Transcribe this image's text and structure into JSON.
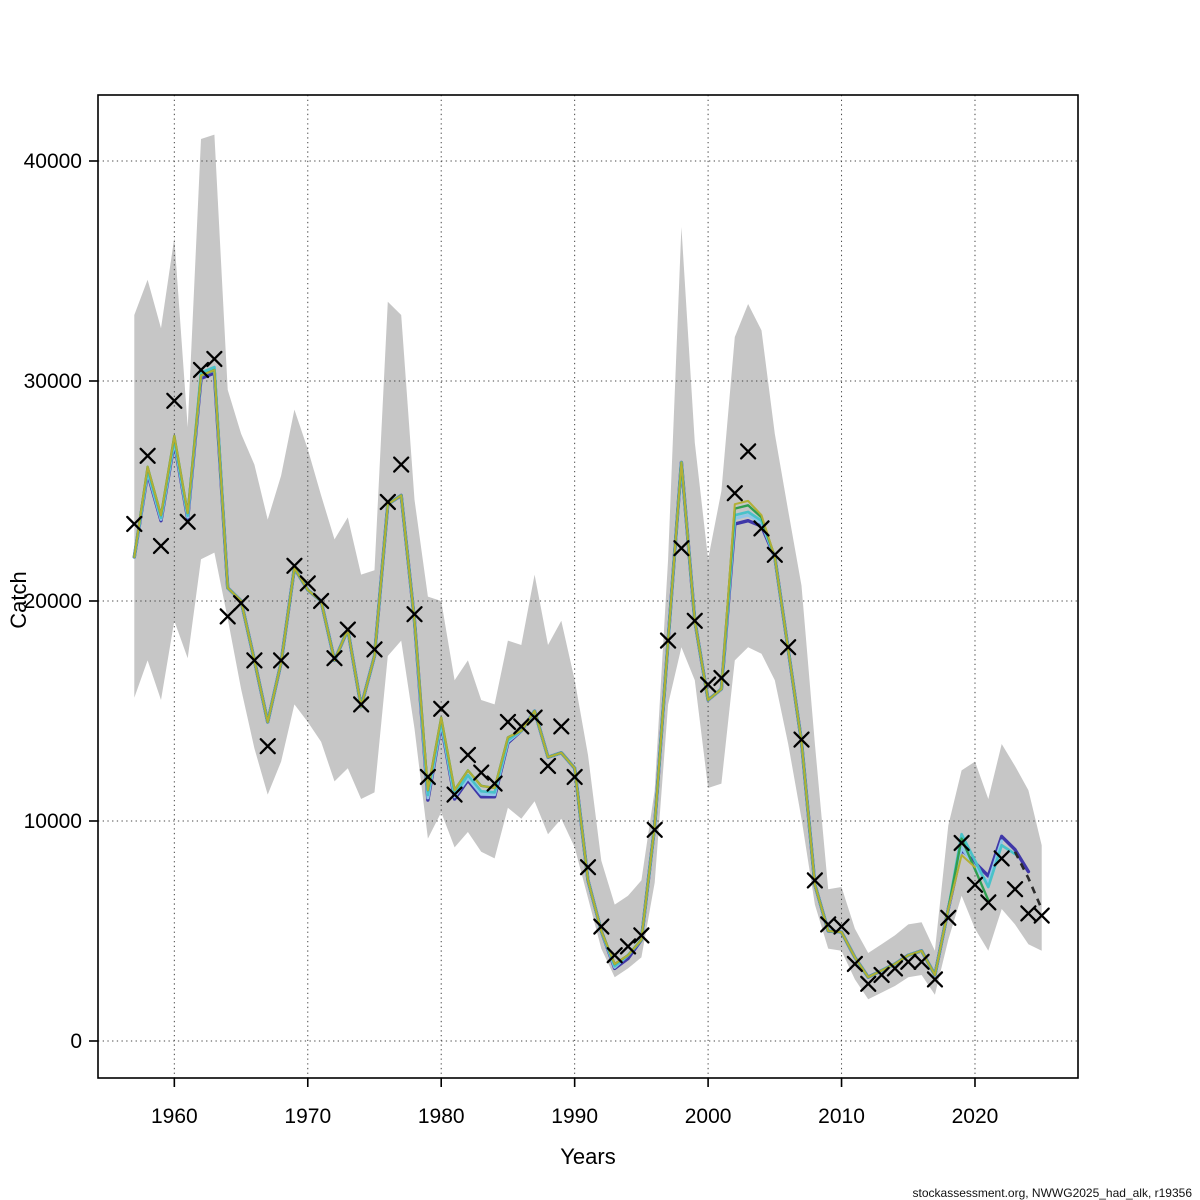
{
  "page": {
    "background": "#ffffff"
  },
  "footer": {
    "text": "stockassessment.org, NWWG2025_had_alk, r19356"
  },
  "chart_data": {
    "type": "line",
    "title": "",
    "xlabel": "Years",
    "ylabel": "Catch",
    "grid": true,
    "legend_position": "none",
    "x_ticks": [
      1960,
      1970,
      1980,
      1990,
      2000,
      2010,
      2020
    ],
    "y_ticks": [
      0,
      10000,
      20000,
      30000,
      40000
    ],
    "xlim": [
      1954.28,
      2027.72
    ],
    "ylim": [
      -1682,
      43000
    ],
    "band_color": "#c6c6c6",
    "grid_color": "#444444",
    "marker": {
      "shape": "x",
      "color": "#000000"
    },
    "years": [
      1957,
      1958,
      1959,
      1960,
      1961,
      1962,
      1963,
      1964,
      1965,
      1966,
      1967,
      1968,
      1969,
      1970,
      1971,
      1972,
      1973,
      1974,
      1975,
      1976,
      1977,
      1978,
      1979,
      1980,
      1981,
      1982,
      1983,
      1984,
      1985,
      1986,
      1987,
      1988,
      1989,
      1990,
      1991,
      1992,
      1993,
      1994,
      1995,
      1996,
      1997,
      1998,
      1999,
      2000,
      2001,
      2002,
      2003,
      2004,
      2005,
      2006,
      2007,
      2008,
      2009,
      2010,
      2011,
      2012,
      2013,
      2014,
      2015,
      2016,
      2017,
      2018,
      2019,
      2020,
      2021,
      2022,
      2023,
      2024,
      2025
    ],
    "observed_catch": [
      23500,
      26600,
      22500,
      29100,
      23600,
      30500,
      31000,
      19300,
      19900,
      17300,
      13400,
      17300,
      21600,
      20800,
      20000,
      17400,
      18700,
      15300,
      17800,
      24500,
      26200,
      19400,
      12000,
      15100,
      11200,
      13000,
      12200,
      11700,
      14500,
      14300,
      14700,
      12500,
      14300,
      12000,
      7900,
      5200,
      3900,
      4300,
      4800,
      9600,
      18200,
      22400,
      19100,
      16200,
      16500,
      24900,
      26800,
      23300,
      22100,
      17900,
      13700,
      7300,
      5300,
      5200,
      3500,
      2600,
      3000,
      3300,
      3600,
      3600,
      2800,
      5600,
      9000,
      7100,
      6300,
      8300,
      6900,
      5800,
      5700
    ],
    "fit_start_year": 1957,
    "fit_common_1957_2018": [
      22000,
      26100,
      23900,
      27500,
      24000,
      30250,
      30500,
      20600,
      20000,
      17300,
      14500,
      17200,
      21500,
      20500,
      20000,
      17300,
      18700,
      15200,
      17500,
      24400,
      24800,
      19100,
      11400,
      14700,
      11400,
      12300,
      11600,
      11500,
      13800,
      14100,
      15000,
      12900,
      13100,
      12400,
      7300,
      5000,
      3500,
      3900,
      4600,
      9800,
      18200,
      26300,
      19100,
      15500,
      16000,
      24200,
      24350,
      23800,
      22000,
      17800,
      13600,
      7100,
      5000,
      4950,
      3800,
      2900,
      3200,
      3500,
      3900,
      4100,
      3000,
      6000
    ],
    "band": {
      "lower": [
        15600,
        17300,
        15500,
        19100,
        17400,
        21900,
        22200,
        19200,
        16000,
        13300,
        11200,
        12700,
        15300,
        14500,
        13600,
        11800,
        12400,
        11000,
        11300,
        17500,
        18200,
        14200,
        9200,
        10400,
        8800,
        9500,
        8600,
        8300,
        10600,
        10100,
        10900,
        9400,
        10100,
        8800,
        6500,
        4200,
        2900,
        3300,
        3800,
        7200,
        15300,
        17900,
        16400,
        11500,
        11700,
        17300,
        17900,
        17600,
        16400,
        13500,
        10100,
        6200,
        4200,
        4100,
        2800,
        1900,
        2200,
        2500,
        2900,
        3000,
        2100,
        4600,
        6600,
        5100,
        4100,
        6000,
        5300,
        4400,
        4100
      ],
      "upper": [
        33000,
        34600,
        32400,
        36500,
        27900,
        41000,
        41200,
        29600,
        27600,
        26200,
        23700,
        25700,
        28700,
        26900,
        24800,
        22800,
        23800,
        21200,
        21400,
        33600,
        33000,
        24600,
        20200,
        20000,
        16400,
        17300,
        15500,
        15300,
        18200,
        18000,
        21200,
        18000,
        19100,
        16400,
        13000,
        8200,
        6200,
        6600,
        7300,
        11400,
        21900,
        37000,
        27200,
        21900,
        25000,
        32000,
        33500,
        32300,
        27600,
        24100,
        20700,
        13500,
        6900,
        7000,
        5100,
        4000,
        4400,
        4800,
        5300,
        5400,
        4100,
        9800,
        12300,
        12700,
        11000,
        13500,
        12500,
        11400,
        8900
      ]
    },
    "series": [
      {
        "name": "run-terminal-2024",
        "color": "#3f37a8",
        "width": 3.4,
        "end_year": 2024,
        "adjust": {
          "1958": -300,
          "1959": -250,
          "1960": -300,
          "1961": -250,
          "1962": -130,
          "1963": -130,
          "1979": -450,
          "1980": -300,
          "1981": -400,
          "1982": -450,
          "1983": -500,
          "1984": -400,
          "1985": -250,
          "1993": -200,
          "1994": -150,
          "2002": -700,
          "2003": -700,
          "2004": -400
        },
        "tail": {
          "2019": 8700,
          "2020": 8100,
          "2021": 7500,
          "2022": 9300,
          "2023": 8700,
          "2024": 7700
        }
      },
      {
        "name": "retro-peel-terminal-2022",
        "color": "#8fc6e8",
        "width": 3.0,
        "end_year": 2022,
        "adjust": {
          "1958": -225,
          "1959": -190,
          "1960": -225,
          "1961": -190,
          "1979": -350,
          "1980": -230,
          "1981": -300,
          "1982": -350,
          "1983": -380,
          "1984": -300,
          "1985": -190,
          "1993": -150,
          "2002": -450,
          "2003": -450,
          "2004": -250
        },
        "tail": {
          "2019": 8800,
          "2020": 7900,
          "2021": 7200,
          "2022": 9100
        }
      },
      {
        "name": "retro-peel-terminal-2023",
        "color": "#49c2c9",
        "width": 2.7,
        "end_year": 2023,
        "adjust": {
          "1958": -150,
          "1959": -120,
          "1960": -150,
          "1961": -120,
          "1962": 130,
          "1963": 130,
          "1979": -220,
          "1980": -150,
          "1981": -200,
          "1982": -220,
          "1983": -250,
          "1984": -200,
          "1985": -120,
          "1993": -100,
          "2002": -300,
          "2003": -300,
          "2004": -150
        },
        "tail": {
          "2019": 9400,
          "2020": 8200,
          "2021": 7000,
          "2022": 8900,
          "2023": 8500
        }
      },
      {
        "name": "retro-peel-terminal-2021",
        "color": "#2f9e4f",
        "width": 2.35,
        "end_year": 2021,
        "adjust": {},
        "tail": {
          "2019": 9200,
          "2020": 7800,
          "2021": 6400
        }
      },
      {
        "name": "retro-peel-terminal-2020",
        "color": "#b3af35",
        "width": 2.0,
        "end_year": 2020,
        "adjust": {
          "2002": 200,
          "2003": 200,
          "2004": 100
        },
        "tail": {
          "2019": 8450,
          "2020": 7900
        }
      }
    ],
    "forecast": {
      "name": "forecast-dashed",
      "color": "#2a2a2a",
      "width": 2.6,
      "dash": [
        7,
        6
      ],
      "years": [
        2023,
        2024,
        2025
      ],
      "values": [
        8600,
        7400,
        6000
      ]
    }
  }
}
